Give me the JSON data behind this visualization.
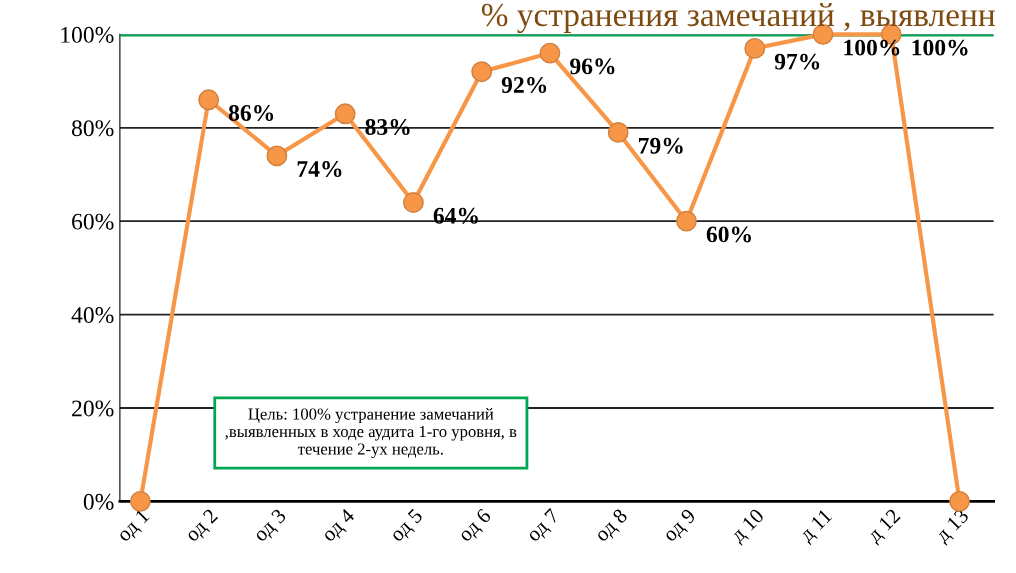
{
  "chart_data": {
    "type": "line",
    "title": "% устранения замечаний , выявленн",
    "categories": [
      "од 1",
      "од 2",
      "од 3",
      "од 4",
      "од 5",
      "од 6",
      "од 7",
      "од 8",
      "од 9",
      "д 10",
      "д 11",
      "д 12",
      "д 13"
    ],
    "series": [
      {
        "color": "#f79646",
        "values": [
          0,
          86,
          74,
          83,
          64,
          92,
          96,
          79,
          60,
          97,
          100,
          100,
          0
        ],
        "value_labels": [
          null,
          "86%",
          "74%",
          "83%",
          "64%",
          "92%",
          "96%",
          "79%",
          "60%",
          "97%",
          "100%",
          "100%",
          null
        ]
      }
    ],
    "ylim": [
      0,
      100
    ],
    "yticks": [
      {
        "value": 0,
        "label": "0%"
      },
      {
        "value": 20,
        "label": "20%"
      },
      {
        "value": 40,
        "label": "40%"
      },
      {
        "value": 60,
        "label": "60%"
      },
      {
        "value": 80,
        "label": "80%"
      },
      {
        "value": 100,
        "label": "100%"
      }
    ],
    "grid": "y",
    "marker": "circle",
    "line_style": "solid",
    "legend": false,
    "ref_lines": [
      {
        "axis": "y",
        "value": 100,
        "color": "#00a651",
        "line_style": "solid"
      }
    ],
    "annotations": [
      "Цель: 100% устранение замечаний\n,выявленных в ходе аудита 1-го уровня, в\nтечение 2-ух недель."
    ]
  }
}
